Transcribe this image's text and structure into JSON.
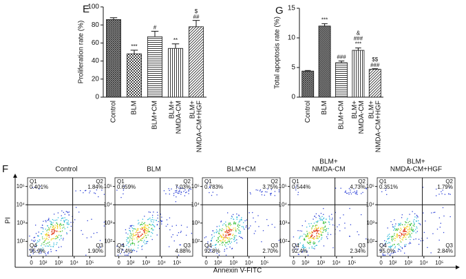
{
  "chart_data": [
    {
      "type": "bar",
      "panel_label": "E",
      "ylabel": "Proliferation rate (%)",
      "categories": [
        [
          "Control"
        ],
        [
          "BLM"
        ],
        [
          "BLM+CM"
        ],
        [
          "BLM+",
          "NMDA-CM"
        ],
        [
          "BLM+",
          "NMDA-CM+HGF"
        ]
      ],
      "values": [
        86,
        48,
        67,
        54,
        78
      ],
      "errors": [
        2,
        4,
        6,
        5,
        7
      ],
      "annotations": [
        null,
        [
          "***"
        ],
        [
          "#"
        ],
        [
          "**"
        ],
        [
          "$",
          "##"
        ]
      ],
      "ylim": [
        0,
        100
      ],
      "yticks": [
        0,
        20,
        40,
        60,
        80,
        100
      ]
    },
    {
      "type": "bar",
      "panel_label": "G",
      "ylabel": "Total apoptosis rate (%)",
      "categories": [
        [
          "Control"
        ],
        [
          "BLM"
        ],
        [
          "BLM+CM"
        ],
        [
          "BLM+",
          "NMDA-CM"
        ],
        [
          "BLM+",
          "NMDA-CM+HGF"
        ]
      ],
      "values": [
        4.4,
        12.0,
        5.8,
        7.9,
        4.7
      ],
      "errors": [
        0.1,
        0.4,
        0.3,
        0.4,
        0.1
      ],
      "annotations": [
        null,
        [
          "***"
        ],
        [
          "###"
        ],
        [
          "&",
          "###",
          "***"
        ],
        [
          "$$",
          "###"
        ]
      ],
      "ylim": [
        0,
        15
      ],
      "yticks": [
        0,
        5,
        10,
        15
      ]
    },
    {
      "type": "flow",
      "panel_label": "F",
      "xlabel": "Annexin V-FITC",
      "ylabel": "PI",
      "log_scale": true,
      "xticks": [
        0,
        {
          "value": 100,
          "label": "10²"
        },
        {
          "value": 1000,
          "label": "10³"
        },
        {
          "value": 10000,
          "label": "10⁴"
        },
        {
          "value": 100000,
          "label": "10⁵"
        }
      ],
      "yticks": [
        {
          "value": 100,
          "label": "10²"
        },
        {
          "value": 1000,
          "label": "10³"
        },
        {
          "value": 10000,
          "label": "10⁴"
        },
        {
          "value": 100000,
          "label": "10⁵"
        }
      ],
      "gate": {
        "x": 8000,
        "y": 10000
      },
      "quadrant_names": [
        "Q1",
        "Q2",
        "Q3",
        "Q4"
      ],
      "panels": [
        {
          "title": [
            "Control"
          ],
          "values": [
            0.401,
            1.84,
            1.9,
            95.9
          ],
          "value_labels": [
            "0.401%",
            "1.84%",
            "1.90%",
            "95.9%"
          ]
        },
        {
          "title": [
            "BLM"
          ],
          "values": [
            0.659,
            7.03,
            4.88,
            87.4
          ],
          "value_labels": [
            "0.659%",
            "7.03%",
            "4.88%",
            "87.4%"
          ]
        },
        {
          "title": [
            "BLM+CM"
          ],
          "values": [
            0.783,
            3.75,
            2.7,
            92.8
          ],
          "value_labels": [
            "0.783%",
            "3.75%",
            "2.70%",
            "92.8%"
          ]
        },
        {
          "title": [
            "BLM+",
            "NMDA-CM"
          ],
          "values": [
            0.544,
            4.73,
            2.34,
            92.4
          ],
          "value_labels": [
            "0.544%",
            "4.73%",
            "2.34%",
            "92.4%"
          ]
        },
        {
          "title": [
            "BLM+",
            "NMDA-CM+HGF"
          ],
          "values": [
            0.351,
            1.79,
            2.84,
            95.0
          ],
          "value_labels": [
            "0.351%",
            "1.79%",
            "2.84%",
            "95.0%"
          ]
        }
      ]
    }
  ]
}
